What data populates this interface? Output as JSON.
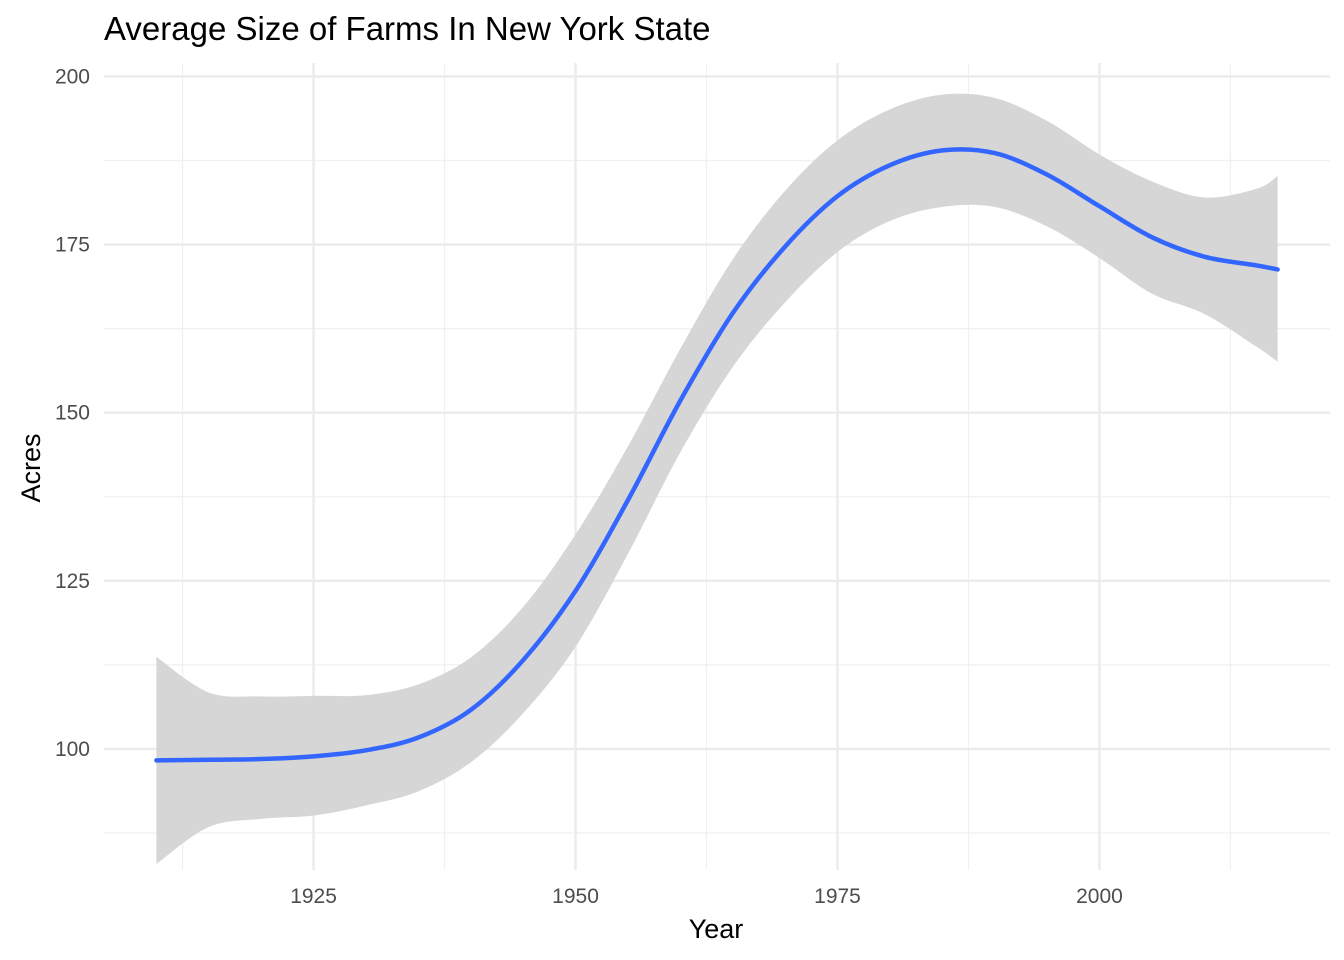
{
  "chart_data": {
    "type": "line",
    "title": "Average Size of Farms In New York State",
    "xlabel": "Year",
    "ylabel": "Acres",
    "xlim": [
      1905,
      2022
    ],
    "ylim": [
      82,
      202
    ],
    "x_ticks": [
      1925,
      1950,
      1975,
      2000
    ],
    "x_tick_labels": [
      "1925",
      "1950",
      "1975",
      "2000"
    ],
    "y_ticks": [
      100,
      125,
      150,
      175,
      200
    ],
    "y_tick_labels": [
      "100",
      "125",
      "150",
      "175",
      "200"
    ],
    "grid": true,
    "legend": "none",
    "series": [
      {
        "style": "smooth-with-confidence-band",
        "color": "#3366FF",
        "band_color": "#D6D6D6",
        "x": [
          1910,
          1915,
          1920,
          1925,
          1930,
          1935,
          1940,
          1945,
          1950,
          1955,
          1960,
          1965,
          1970,
          1975,
          1980,
          1985,
          1990,
          1995,
          2000,
          2005,
          2010,
          2015,
          2017
        ],
        "y": [
          98.3,
          98.4,
          98.5,
          98.9,
          99.8,
          101.7,
          105.8,
          113.2,
          123.5,
          137.0,
          151.8,
          164.8,
          174.7,
          182.2,
          186.8,
          189.0,
          188.6,
          185.4,
          180.7,
          176.1,
          173.2,
          171.9,
          171.3
        ],
        "lower": [
          82.9,
          88.4,
          89.6,
          90.1,
          91.6,
          93.7,
          98.0,
          105.3,
          115.2,
          129.0,
          144.1,
          156.8,
          166.4,
          173.9,
          178.5,
          180.6,
          180.6,
          177.7,
          173.0,
          167.7,
          164.7,
          159.8,
          157.6
        ],
        "upper": [
          113.7,
          108.4,
          107.8,
          107.9,
          108.0,
          109.6,
          113.6,
          121.1,
          131.9,
          145.0,
          159.5,
          172.8,
          183.0,
          190.5,
          195.1,
          197.3,
          196.8,
          193.4,
          188.4,
          184.4,
          182.0,
          183.3,
          185.2
        ]
      }
    ]
  }
}
